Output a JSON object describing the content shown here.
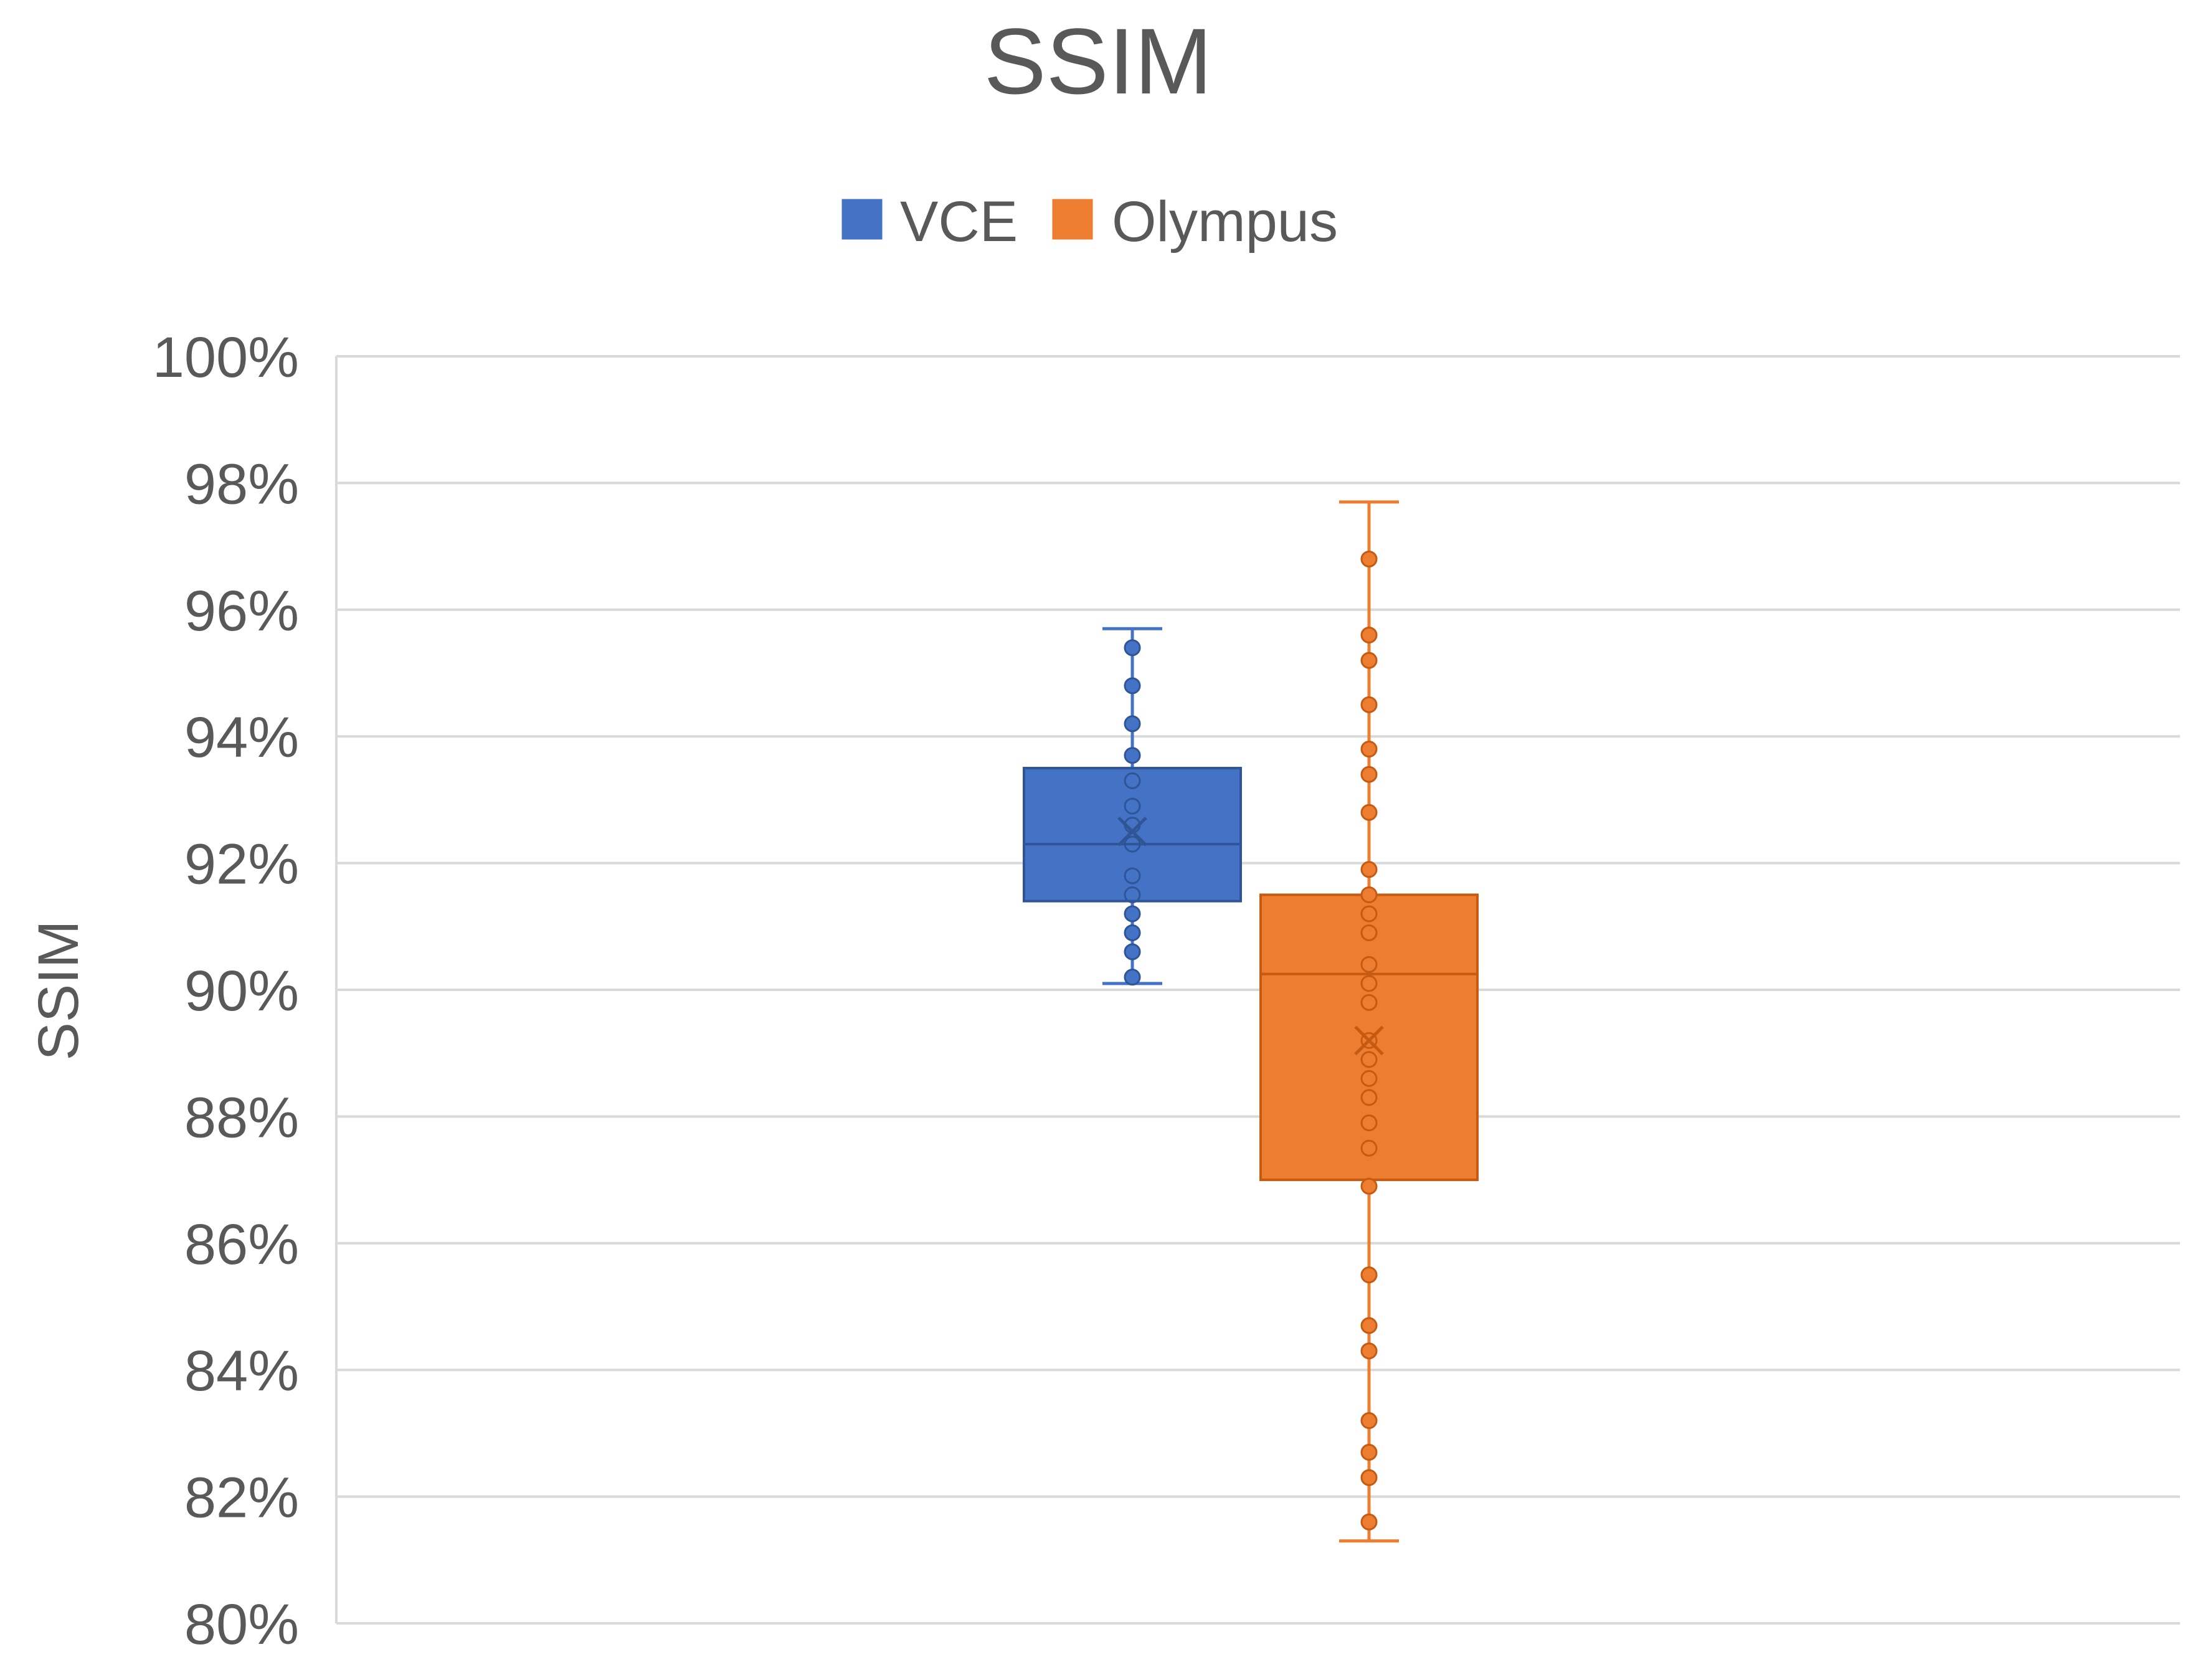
{
  "chart_data": {
    "type": "box",
    "title": "SSIM",
    "xlabel": "",
    "ylabel": "SSIM",
    "ylim": [
      80,
      100
    ],
    "y_ticks": [
      "80%",
      "82%",
      "84%",
      "86%",
      "88%",
      "90%",
      "92%",
      "94%",
      "96%",
      "98%",
      "100%"
    ],
    "y_tick_values": [
      80,
      82,
      84,
      86,
      88,
      90,
      92,
      94,
      96,
      98,
      100
    ],
    "grid": true,
    "legend_position": "top-center",
    "series": [
      {
        "name": "VCE",
        "color": "#4472C4",
        "min": 90.1,
        "q1": 91.4,
        "median": 92.3,
        "q3": 93.5,
        "max": 95.7,
        "mean": 92.5,
        "points": [
          95.4,
          94.8,
          94.2,
          93.7,
          93.3,
          92.9,
          92.6,
          92.3,
          91.8,
          91.5,
          91.2,
          90.9,
          90.6,
          90.2
        ]
      },
      {
        "name": "Olympus",
        "color": "#ED7D31",
        "min": 81.3,
        "q1": 87.0,
        "median": 90.25,
        "q3": 91.5,
        "max": 97.7,
        "mean": 89.2,
        "points": [
          96.8,
          95.6,
          95.2,
          94.5,
          93.8,
          93.4,
          92.8,
          91.9,
          91.5,
          91.2,
          90.9,
          90.4,
          90.1,
          89.8,
          89.2,
          88.9,
          88.6,
          88.3,
          87.9,
          87.5,
          86.9,
          85.5,
          84.7,
          84.3,
          83.2,
          82.7,
          82.3,
          81.6
        ]
      }
    ]
  }
}
